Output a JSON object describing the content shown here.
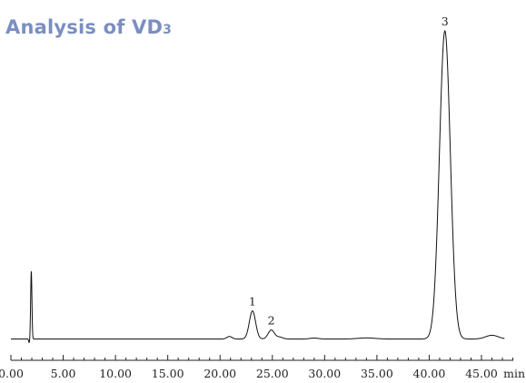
{
  "chart_data": {
    "type": "line",
    "title_main": "Analysis of  VD",
    "title_subscript": "3",
    "xlabel": "min",
    "ylabel": "",
    "xlim": [
      0,
      48
    ],
    "ylim": [
      0,
      100
    ],
    "grid": false,
    "x_ticks": [
      {
        "value": 0,
        "label": "0.00"
      },
      {
        "value": 5,
        "label": "5.00"
      },
      {
        "value": 10,
        "label": "10.00"
      },
      {
        "value": 15,
        "label": "15.00"
      },
      {
        "value": 20,
        "label": "20.00"
      },
      {
        "value": 25,
        "label": "25.00"
      },
      {
        "value": 30,
        "label": "30.00"
      },
      {
        "value": 35,
        "label": "35.00"
      },
      {
        "value": 40,
        "label": "40.00"
      },
      {
        "value": 45,
        "label": "45.00"
      }
    ],
    "minor_tick_step": 1,
    "peaks": [
      {
        "label": "",
        "time": 1.95,
        "height": 22.0,
        "width": 0.06
      },
      {
        "label": "",
        "time": 20.9,
        "height": 0.8,
        "width": 0.25
      },
      {
        "label": "1",
        "time": 23.1,
        "height": 9.1,
        "width": 0.3
      },
      {
        "label": "2",
        "time": 24.9,
        "height": 2.9,
        "width": 0.3
      },
      {
        "label": "",
        "time": 25.7,
        "height": 0.6,
        "width": 0.3
      },
      {
        "label": "",
        "time": 29.0,
        "height": 0.3,
        "width": 0.4
      },
      {
        "label": "",
        "time": 34.0,
        "height": 0.35,
        "width": 0.8
      },
      {
        "label": "3",
        "time": 41.5,
        "height": 100.0,
        "width": 0.52
      },
      {
        "label": "",
        "time": 46.0,
        "height": 1.2,
        "width": 0.6
      }
    ],
    "baseline_dip": {
      "time": 1.75,
      "depth": -1.2,
      "width": 0.05
    }
  }
}
